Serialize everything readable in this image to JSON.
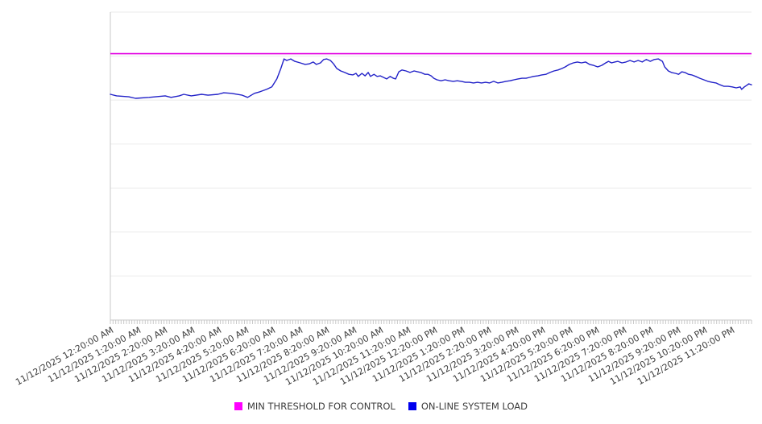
{
  "chart_data": {
    "type": "line",
    "title": "",
    "x_axis": {
      "date": "11/12/2025",
      "labels": [
        "11/12/2025 12:20:00 AM",
        "11/12/2025 1:20:00 AM",
        "11/12/2025 2:20:00 AM",
        "11/12/2025 3:20:00 AM",
        "11/12/2025 4:20:00 AM",
        "11/12/2025 5:20:00 AM",
        "11/12/2025 6:20:00 AM",
        "11/12/2025 7:20:00 AM",
        "11/12/2025 8:20:00 AM",
        "11/12/2025 9:20:00 AM",
        "11/12/2025 10:20:00 AM",
        "11/12/2025 11:20:00 AM",
        "11/12/2025 12:20:00 PM",
        "11/12/2025 1:20:00 PM",
        "11/12/2025 2:20:00 PM",
        "11/12/2025 3:20:00 PM",
        "11/12/2025 4:20:00 PM",
        "11/12/2025 5:20:00 PM",
        "11/12/2025 6:20:00 PM",
        "11/12/2025 7:20:00 PM",
        "11/12/2025 8:20:00 PM",
        "11/12/2025 9:20:00 PM",
        "11/12/2025 10:20:00 PM",
        "11/12/2025 11:20:00 PM"
      ],
      "label_interval": "1 hour",
      "minor_tick_interval_minutes": 6,
      "label_rotation_deg": -29
    },
    "y_axis": {
      "tick_labels_visible": false,
      "units": "percent of plot height (y-axis is unlabeled in source)",
      "ylim": [
        0,
        100
      ],
      "gridline_count": 8,
      "grid": "horizontal only"
    },
    "legend_position": "bottom-center",
    "series": [
      {
        "name": "MIN THRESHOLD FOR CONTROL",
        "type": "threshold-line",
        "swatch_color": "#ff00ff",
        "line_color": "#e100e1",
        "value_pct": 86.5
      },
      {
        "name": "ON-LINE SYSTEM LOAD",
        "type": "line",
        "swatch_color": "#0000ee",
        "line_color": "#2222c8",
        "points_minute_pct": [
          [
            20,
            73.3
          ],
          [
            34,
            72.8
          ],
          [
            61,
            72.5
          ],
          [
            76,
            72.0
          ],
          [
            106,
            72.3
          ],
          [
            142,
            72.8
          ],
          [
            155,
            72.3
          ],
          [
            173,
            72.8
          ],
          [
            183,
            73.3
          ],
          [
            200,
            72.8
          ],
          [
            223,
            73.3
          ],
          [
            237,
            73.0
          ],
          [
            259,
            73.3
          ],
          [
            272,
            73.8
          ],
          [
            289,
            73.6
          ],
          [
            313,
            73.0
          ],
          [
            325,
            72.3
          ],
          [
            340,
            73.6
          ],
          [
            352,
            74.1
          ],
          [
            367,
            74.9
          ],
          [
            379,
            75.7
          ],
          [
            390,
            78.3
          ],
          [
            399,
            81.7
          ],
          [
            406,
            84.8
          ],
          [
            412,
            84.3
          ],
          [
            421,
            84.8
          ],
          [
            430,
            84.0
          ],
          [
            442,
            83.5
          ],
          [
            453,
            83.0
          ],
          [
            462,
            83.2
          ],
          [
            471,
            83.8
          ],
          [
            478,
            83.0
          ],
          [
            487,
            83.5
          ],
          [
            494,
            84.6
          ],
          [
            501,
            84.8
          ],
          [
            509,
            84.3
          ],
          [
            516,
            83.2
          ],
          [
            523,
            81.7
          ],
          [
            532,
            80.9
          ],
          [
            541,
            80.4
          ],
          [
            550,
            79.8
          ],
          [
            559,
            79.6
          ],
          [
            566,
            80.1
          ],
          [
            571,
            79.1
          ],
          [
            579,
            80.1
          ],
          [
            586,
            79.3
          ],
          [
            593,
            80.4
          ],
          [
            598,
            79.1
          ],
          [
            606,
            79.8
          ],
          [
            613,
            79.1
          ],
          [
            620,
            79.3
          ],
          [
            627,
            78.8
          ],
          [
            634,
            78.3
          ],
          [
            642,
            79.1
          ],
          [
            649,
            78.5
          ],
          [
            654,
            78.3
          ],
          [
            661,
            80.6
          ],
          [
            668,
            81.2
          ],
          [
            677,
            80.9
          ],
          [
            686,
            80.4
          ],
          [
            695,
            80.9
          ],
          [
            703,
            80.6
          ],
          [
            710,
            80.4
          ],
          [
            719,
            79.8
          ],
          [
            726,
            79.8
          ],
          [
            733,
            79.3
          ],
          [
            739,
            78.5
          ],
          [
            746,
            78.0
          ],
          [
            755,
            77.7
          ],
          [
            764,
            78.0
          ],
          [
            773,
            77.7
          ],
          [
            782,
            77.5
          ],
          [
            791,
            77.7
          ],
          [
            800,
            77.5
          ],
          [
            809,
            77.2
          ],
          [
            818,
            77.2
          ],
          [
            827,
            77.0
          ],
          [
            836,
            77.2
          ],
          [
            845,
            77.0
          ],
          [
            854,
            77.2
          ],
          [
            863,
            77.0
          ],
          [
            872,
            77.5
          ],
          [
            881,
            77.0
          ],
          [
            890,
            77.2
          ],
          [
            899,
            77.5
          ],
          [
            908,
            77.7
          ],
          [
            917,
            78.0
          ],
          [
            926,
            78.3
          ],
          [
            935,
            78.5
          ],
          [
            944,
            78.5
          ],
          [
            952,
            78.8
          ],
          [
            960,
            79.1
          ],
          [
            970,
            79.3
          ],
          [
            979,
            79.6
          ],
          [
            988,
            79.8
          ],
          [
            997,
            80.4
          ],
          [
            1006,
            80.9
          ],
          [
            1015,
            81.2
          ],
          [
            1024,
            81.7
          ],
          [
            1031,
            82.2
          ],
          [
            1040,
            83.0
          ],
          [
            1049,
            83.5
          ],
          [
            1058,
            83.8
          ],
          [
            1067,
            83.5
          ],
          [
            1076,
            83.8
          ],
          [
            1085,
            83.0
          ],
          [
            1094,
            82.7
          ],
          [
            1103,
            82.2
          ],
          [
            1112,
            82.7
          ],
          [
            1121,
            83.5
          ],
          [
            1127,
            84.0
          ],
          [
            1134,
            83.5
          ],
          [
            1141,
            83.8
          ],
          [
            1148,
            84.0
          ],
          [
            1157,
            83.5
          ],
          [
            1166,
            83.8
          ],
          [
            1175,
            84.3
          ],
          [
            1184,
            83.8
          ],
          [
            1193,
            84.3
          ],
          [
            1202,
            83.8
          ],
          [
            1211,
            84.6
          ],
          [
            1220,
            84.0
          ],
          [
            1229,
            84.6
          ],
          [
            1238,
            84.8
          ],
          [
            1247,
            84.0
          ],
          [
            1252,
            82.2
          ],
          [
            1260,
            80.9
          ],
          [
            1267,
            80.4
          ],
          [
            1276,
            80.1
          ],
          [
            1283,
            79.8
          ],
          [
            1290,
            80.6
          ],
          [
            1297,
            80.4
          ],
          [
            1305,
            79.8
          ],
          [
            1312,
            79.6
          ],
          [
            1321,
            79.1
          ],
          [
            1330,
            78.5
          ],
          [
            1339,
            78.0
          ],
          [
            1348,
            77.5
          ],
          [
            1357,
            77.2
          ],
          [
            1366,
            77.0
          ],
          [
            1375,
            76.4
          ],
          [
            1384,
            75.9
          ],
          [
            1393,
            75.9
          ],
          [
            1402,
            75.7
          ],
          [
            1411,
            75.4
          ],
          [
            1420,
            75.7
          ],
          [
            1423,
            74.9
          ],
          [
            1429,
            75.7
          ],
          [
            1434,
            76.2
          ],
          [
            1439,
            76.7
          ],
          [
            1445,
            76.4
          ]
        ]
      }
    ],
    "colors": {
      "gridline": "#ebebeb",
      "axis": "#c9c9c9",
      "tick": "#c9c9c9",
      "label_text": "#3d3d3d",
      "background": "#ffffff"
    }
  }
}
